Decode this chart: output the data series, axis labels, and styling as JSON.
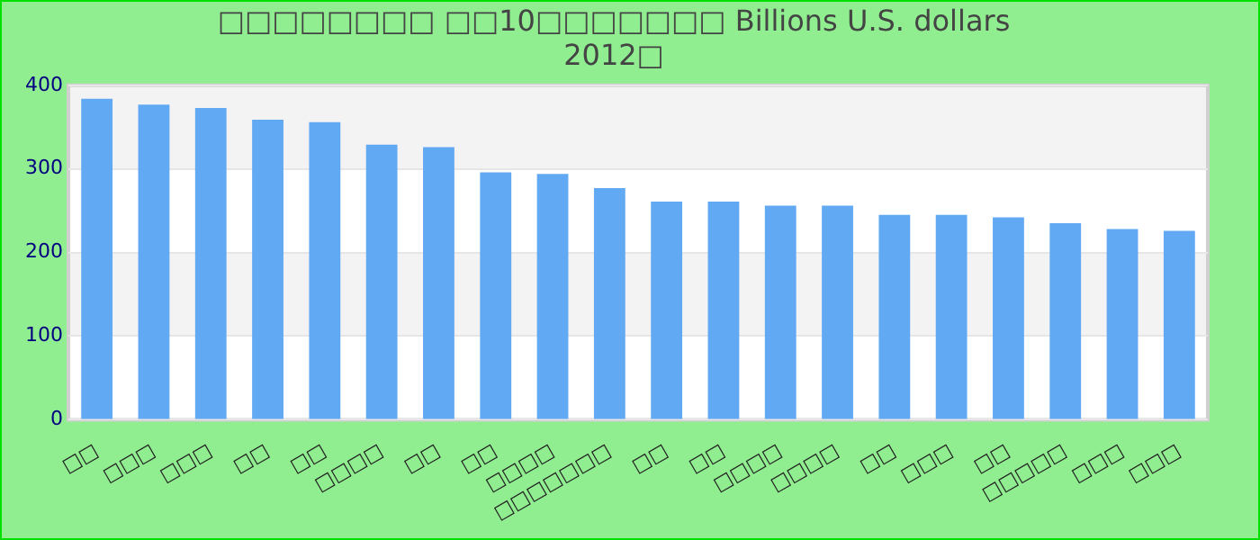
{
  "chart_data": {
    "type": "bar",
    "title": "□□□□□□□□ □□10□□□□□□□ Billions U.S. dollars",
    "subtitle": "2012□",
    "categories": [
      "□□",
      "□□□",
      "□□□",
      "□□",
      "□□",
      "□□□□",
      "□□",
      "□□",
      "□□□□",
      "□□□□□□□",
      "□□",
      "□□",
      "□□□□",
      "□□□□",
      "□□",
      "□□□",
      "□□",
      "□□□□□",
      "□□□",
      "□□□"
    ],
    "values": [
      384,
      377,
      373,
      359,
      356,
      329,
      326,
      296,
      294,
      277,
      261,
      261,
      256,
      256,
      245,
      245,
      242,
      235,
      228,
      226
    ],
    "color": "#62a9f4",
    "ylim": [
      0,
      400
    ],
    "yticks": [
      0,
      100,
      200,
      300,
      400
    ],
    "grid": true
  }
}
